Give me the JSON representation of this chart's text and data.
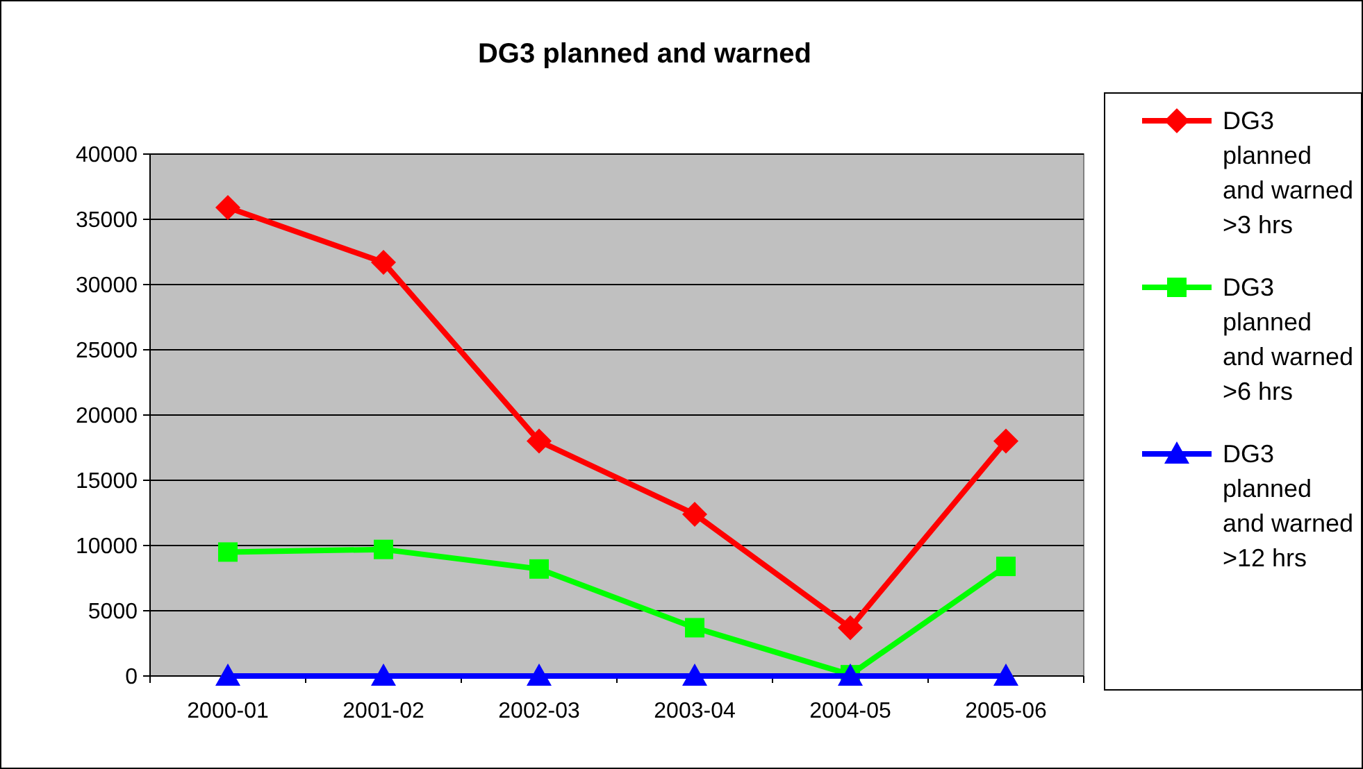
{
  "chart_data": {
    "type": "line",
    "title": "DG3 planned and warned",
    "categories": [
      "2000-01",
      "2001-02",
      "2002-03",
      "2003-04",
      "2004-05",
      "2005-06"
    ],
    "series": [
      {
        "name": "DG3 planned and warned >3 hrs",
        "color": "#ff0000",
        "marker": "diamond",
        "values": [
          35900,
          31700,
          18000,
          12400,
          3700,
          18000
        ]
      },
      {
        "name": "DG3 planned and warned >6 hrs",
        "color": "#00ff00",
        "marker": "square",
        "values": [
          9500,
          9700,
          8200,
          3700,
          100,
          8400
        ]
      },
      {
        "name": "DG3 planned and warned >12 hrs",
        "color": "#0000ff",
        "marker": "triangle",
        "values": [
          0,
          0,
          0,
          0,
          0,
          0
        ]
      }
    ],
    "ylim": [
      0,
      40000
    ],
    "yticks": [
      0,
      5000,
      10000,
      15000,
      20000,
      25000,
      30000,
      35000,
      40000
    ],
    "grid": "y",
    "legend": "right"
  }
}
